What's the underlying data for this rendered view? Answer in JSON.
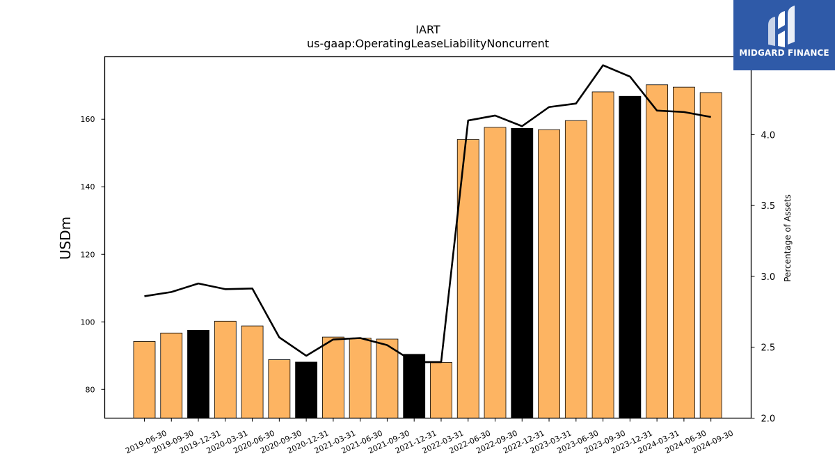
{
  "chart_data": {
    "type": "bar",
    "title": "IART",
    "subtitle": "us-gaap:OperatingLeaseLiabilityNoncurrent",
    "ylabel": "USDm",
    "y2label": "Percentage of Assets",
    "ylim": [
      71.5,
      178.5
    ],
    "y2lim": [
      2.0,
      4.55
    ],
    "yticks": [
      80,
      100,
      120,
      140,
      160
    ],
    "y2ticks": [
      2.0,
      2.5,
      3.0,
      3.5,
      4.0,
      4.5
    ],
    "categories": [
      "2019-06-30",
      "2019-09-30",
      "2019-12-31",
      "2020-03-31",
      "2020-06-30",
      "2020-09-30",
      "2020-12-31",
      "2021-03-31",
      "2021-06-30",
      "2021-09-30",
      "2021-12-31",
      "2022-03-31",
      "2022-06-30",
      "2022-09-30",
      "2022-12-31",
      "2023-03-31",
      "2023-06-30",
      "2023-09-30",
      "2023-12-31",
      "2024-03-31",
      "2024-06-30",
      "2024-09-30"
    ],
    "series": [
      {
        "kind": "bar",
        "axis": "left",
        "values": [
          94.2,
          96.7,
          97.5,
          100.2,
          98.8,
          88.8,
          88.1,
          95.5,
          95.2,
          94.9,
          90.4,
          88.0,
          154.0,
          157.6,
          157.3,
          156.9,
          159.6,
          168.1,
          166.8,
          170.2,
          169.5,
          167.9
        ],
        "colors": [
          "#fdb462",
          "#fdb462",
          "#000000",
          "#fdb462",
          "#fdb462",
          "#fdb462",
          "#000000",
          "#fdb462",
          "#fdb462",
          "#fdb462",
          "#000000",
          "#fdb462",
          "#fdb462",
          "#fdb462",
          "#000000",
          "#fdb462",
          "#fdb462",
          "#fdb462",
          "#000000",
          "#fdb462",
          "#fdb462",
          "#fdb462"
        ]
      },
      {
        "kind": "line",
        "axis": "right",
        "color": "#000000",
        "values": [
          2.86,
          2.89,
          2.95,
          2.91,
          2.915,
          2.57,
          2.44,
          2.555,
          2.565,
          2.515,
          2.395,
          2.395,
          4.1,
          4.135,
          4.06,
          4.195,
          4.22,
          4.49,
          4.41,
          4.17,
          4.16,
          4.125
        ]
      }
    ]
  },
  "logo": {
    "name": "MIDGARD FINANCE"
  }
}
